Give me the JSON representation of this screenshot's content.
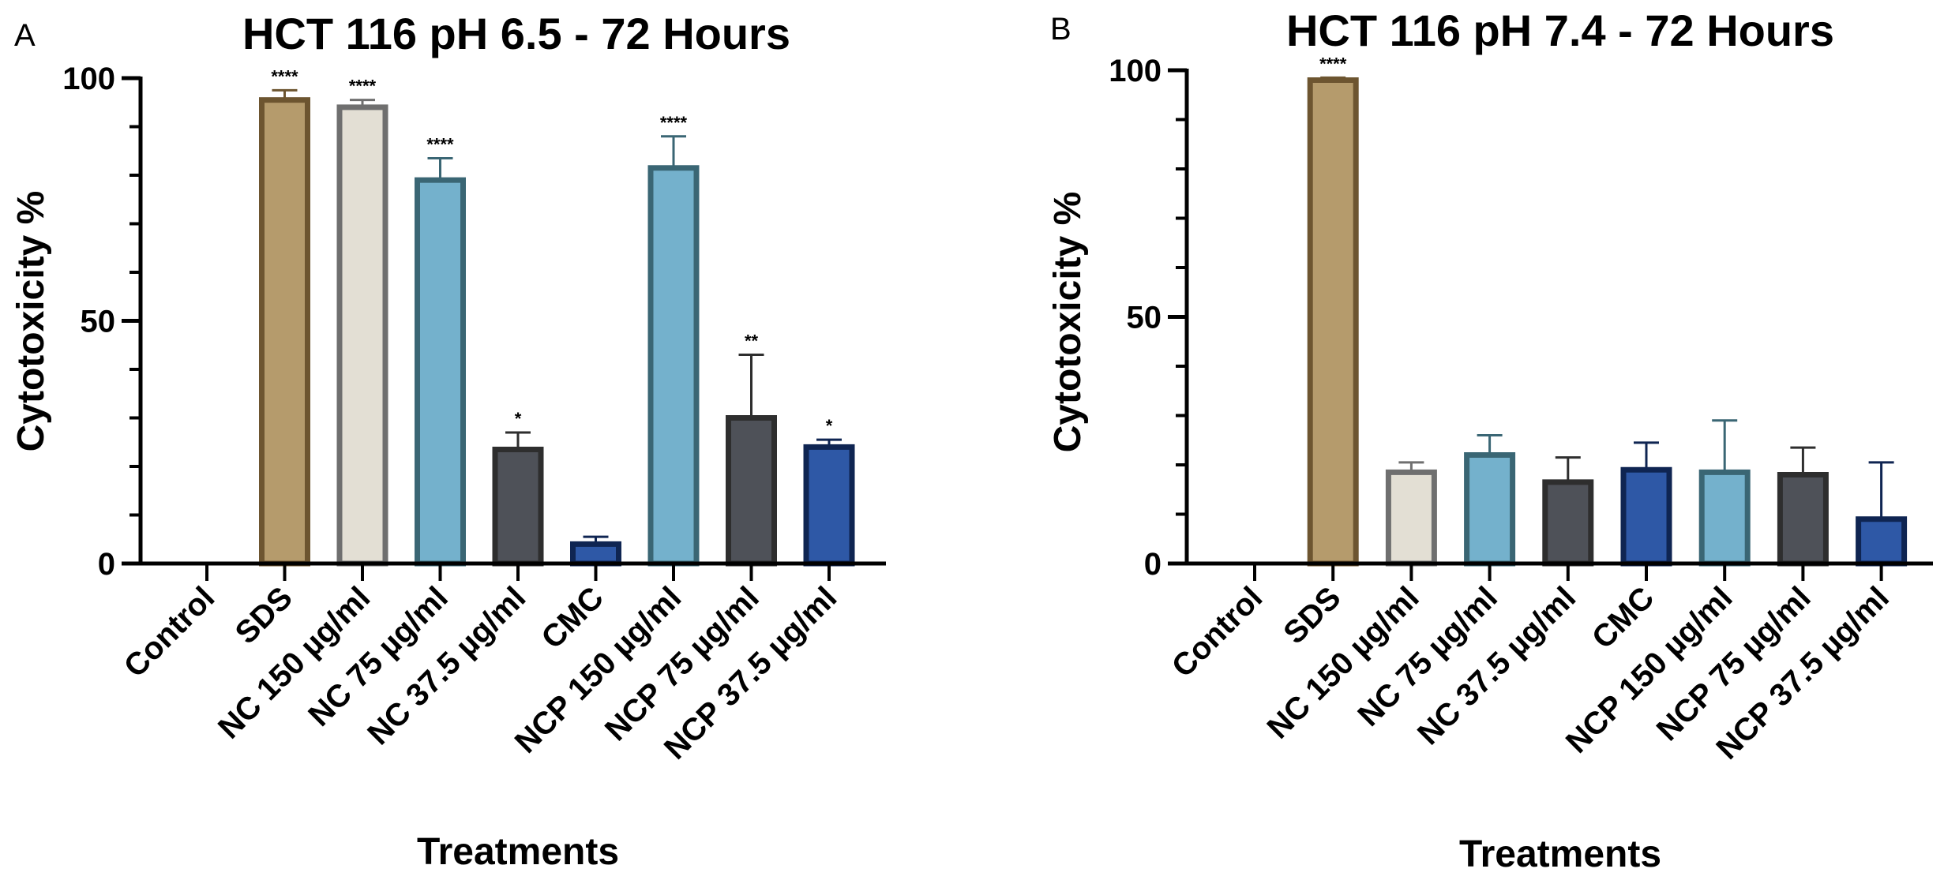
{
  "chart_data": [
    {
      "panel_label": "A",
      "type": "bar",
      "title": "HCT 116 pH 6.5 - 72 Hours",
      "xlabel": "Treatments",
      "ylabel": "Cytotoxicity %",
      "ylim": [
        0,
        100
      ],
      "yticks": [
        0,
        50,
        100
      ],
      "grid": false,
      "categories": [
        "Control",
        "SDS",
        "NC 150 µg/ml",
        "NC 75 µg/ml",
        "NC 37.5 µg/ml",
        "CMC",
        "NCP 150 µg/ml",
        "NCP 75 µg/ml",
        "NCP 37.5 µg/ml"
      ],
      "values": [
        0,
        95.5,
        94,
        79,
        23.5,
        4,
        81.5,
        30,
        24
      ],
      "errors": [
        0,
        2,
        1.5,
        4.5,
        3.5,
        1.5,
        6.5,
        13,
        1.5
      ],
      "significance": [
        "",
        "****",
        "****",
        "****",
        "*",
        "",
        "****",
        "**",
        "*"
      ],
      "fill_colors": [
        "#ffffff",
        "#b59b6c",
        "#e3dfd4",
        "#74b1cc",
        "#4e5158",
        "#2e58a6",
        "#74b1cc",
        "#4e5158",
        "#2e58a6"
      ],
      "edge_colors": [
        "#000000",
        "#6d5530",
        "#6f6f6f",
        "#3a6674",
        "#2e2e2e",
        "#0f2552",
        "#3a6674",
        "#2e2e2e",
        "#0f2552"
      ]
    },
    {
      "panel_label": "B",
      "type": "bar",
      "title": "HCT 116 pH 7.4 - 72 Hours",
      "xlabel": "Treatments",
      "ylabel": "Cytotoxicity %",
      "ylim": [
        0,
        100
      ],
      "yticks": [
        0,
        50,
        100
      ],
      "grid": false,
      "categories": [
        "Control",
        "SDS",
        "NC 150 µg/ml",
        "NC 75 µg/ml",
        "NC 37.5 µg/ml",
        "CMC",
        "NCP 150 µg/ml",
        "NCP 75 µg/ml",
        "NCP 37.5 µg/ml"
      ],
      "values": [
        0,
        98,
        18.5,
        22,
        16.5,
        19,
        18.5,
        18,
        9
      ],
      "errors": [
        0,
        0.5,
        2,
        4,
        5,
        5.5,
        10.5,
        5.5,
        11.5
      ],
      "significance": [
        "",
        "****",
        "",
        "",
        "",
        "",
        "",
        "",
        ""
      ],
      "fill_colors": [
        "#ffffff",
        "#b59b6c",
        "#e3dfd4",
        "#74b1cc",
        "#4e5158",
        "#2e58a6",
        "#74b1cc",
        "#4e5158",
        "#2e58a6"
      ],
      "edge_colors": [
        "#000000",
        "#6d5530",
        "#6f6f6f",
        "#3a6674",
        "#2e2e2e",
        "#0f2552",
        "#3a6674",
        "#2e2e2e",
        "#0f2552"
      ]
    }
  ]
}
